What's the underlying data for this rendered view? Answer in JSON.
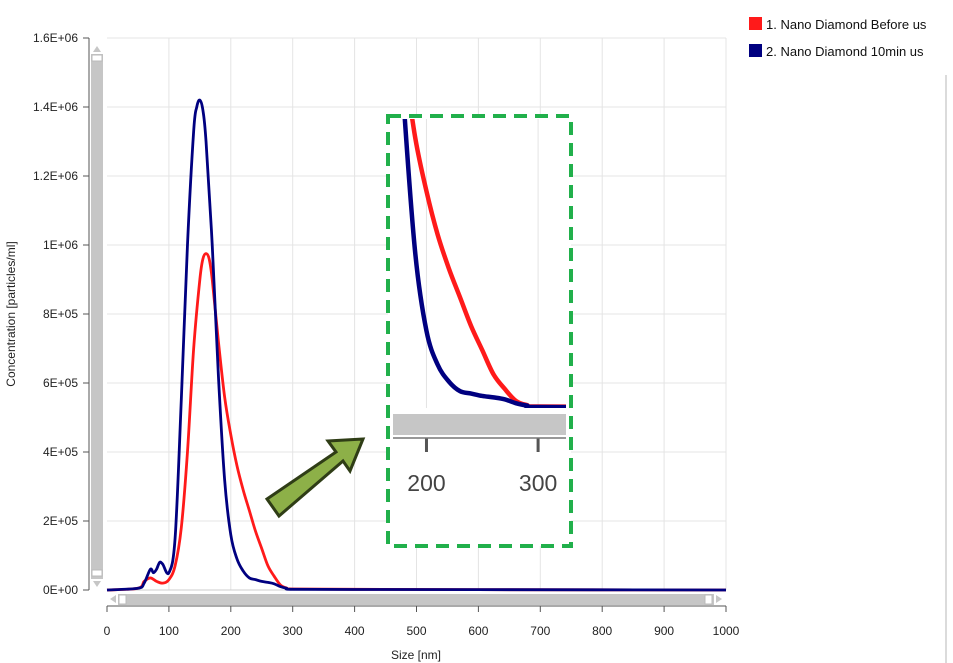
{
  "legend": {
    "placement": "top-right",
    "items": [
      {
        "label": "1. Nano Diamond Before us",
        "color": "#ff1a1a"
      },
      {
        "label": "2. Nano Diamond 10min us",
        "color": "#000080"
      }
    ]
  },
  "chart_data": {
    "type": "line",
    "xlabel": "Size [nm]",
    "ylabel": "Concentration [particles/ml]",
    "xlim": [
      0,
      1000
    ],
    "ylim": [
      0,
      1600000
    ],
    "x_ticks": [
      "0",
      "100",
      "200",
      "300",
      "400",
      "500",
      "600",
      "700",
      "800",
      "900",
      "1000"
    ],
    "y_ticks": [
      "0E+00",
      "2E+05",
      "4E+05",
      "6E+05",
      "8E+05",
      "1E+06",
      "1.2E+06",
      "1.4E+06",
      "1.6E+06"
    ],
    "grid": true,
    "series": [
      {
        "name": "1. Nano Diamond Before us",
        "color": "#ff1a1a",
        "x": [
          0,
          50,
          60,
          70,
          80,
          90,
          100,
          110,
          120,
          130,
          140,
          150,
          155,
          160,
          165,
          170,
          180,
          190,
          200,
          210,
          220,
          230,
          240,
          250,
          260,
          270,
          280,
          290,
          300,
          400,
          600,
          1000
        ],
        "y": [
          0,
          5000,
          25000,
          35000,
          25000,
          20000,
          30000,
          70000,
          180000,
          400000,
          700000,
          900000,
          960000,
          975000,
          960000,
          900000,
          720000,
          560000,
          450000,
          360000,
          290000,
          230000,
          170000,
          120000,
          70000,
          40000,
          15000,
          6000,
          3000,
          2000,
          1000,
          0
        ]
      },
      {
        "name": "2. Nano Diamond 10min us",
        "color": "#000080",
        "x": [
          0,
          50,
          60,
          70,
          75,
          80,
          85,
          90,
          100,
          110,
          120,
          130,
          140,
          145,
          150,
          155,
          160,
          170,
          180,
          190,
          200,
          210,
          220,
          230,
          240,
          250,
          260,
          270,
          280,
          290,
          300,
          400,
          600,
          1000
        ],
        "y": [
          0,
          5000,
          20000,
          60000,
          50000,
          60000,
          80000,
          75000,
          50000,
          150000,
          550000,
          1000000,
          1330000,
          1400000,
          1420000,
          1390000,
          1300000,
          1000000,
          620000,
          320000,
          160000,
          90000,
          55000,
          35000,
          30000,
          25000,
          22000,
          18000,
          10000,
          5000,
          2000,
          1500,
          1000,
          0
        ]
      }
    ],
    "inset": {
      "x_ticks": [
        "200",
        "300"
      ],
      "xlim": [
        170,
        325
      ],
      "ylim": [
        0,
        600000
      ]
    }
  }
}
